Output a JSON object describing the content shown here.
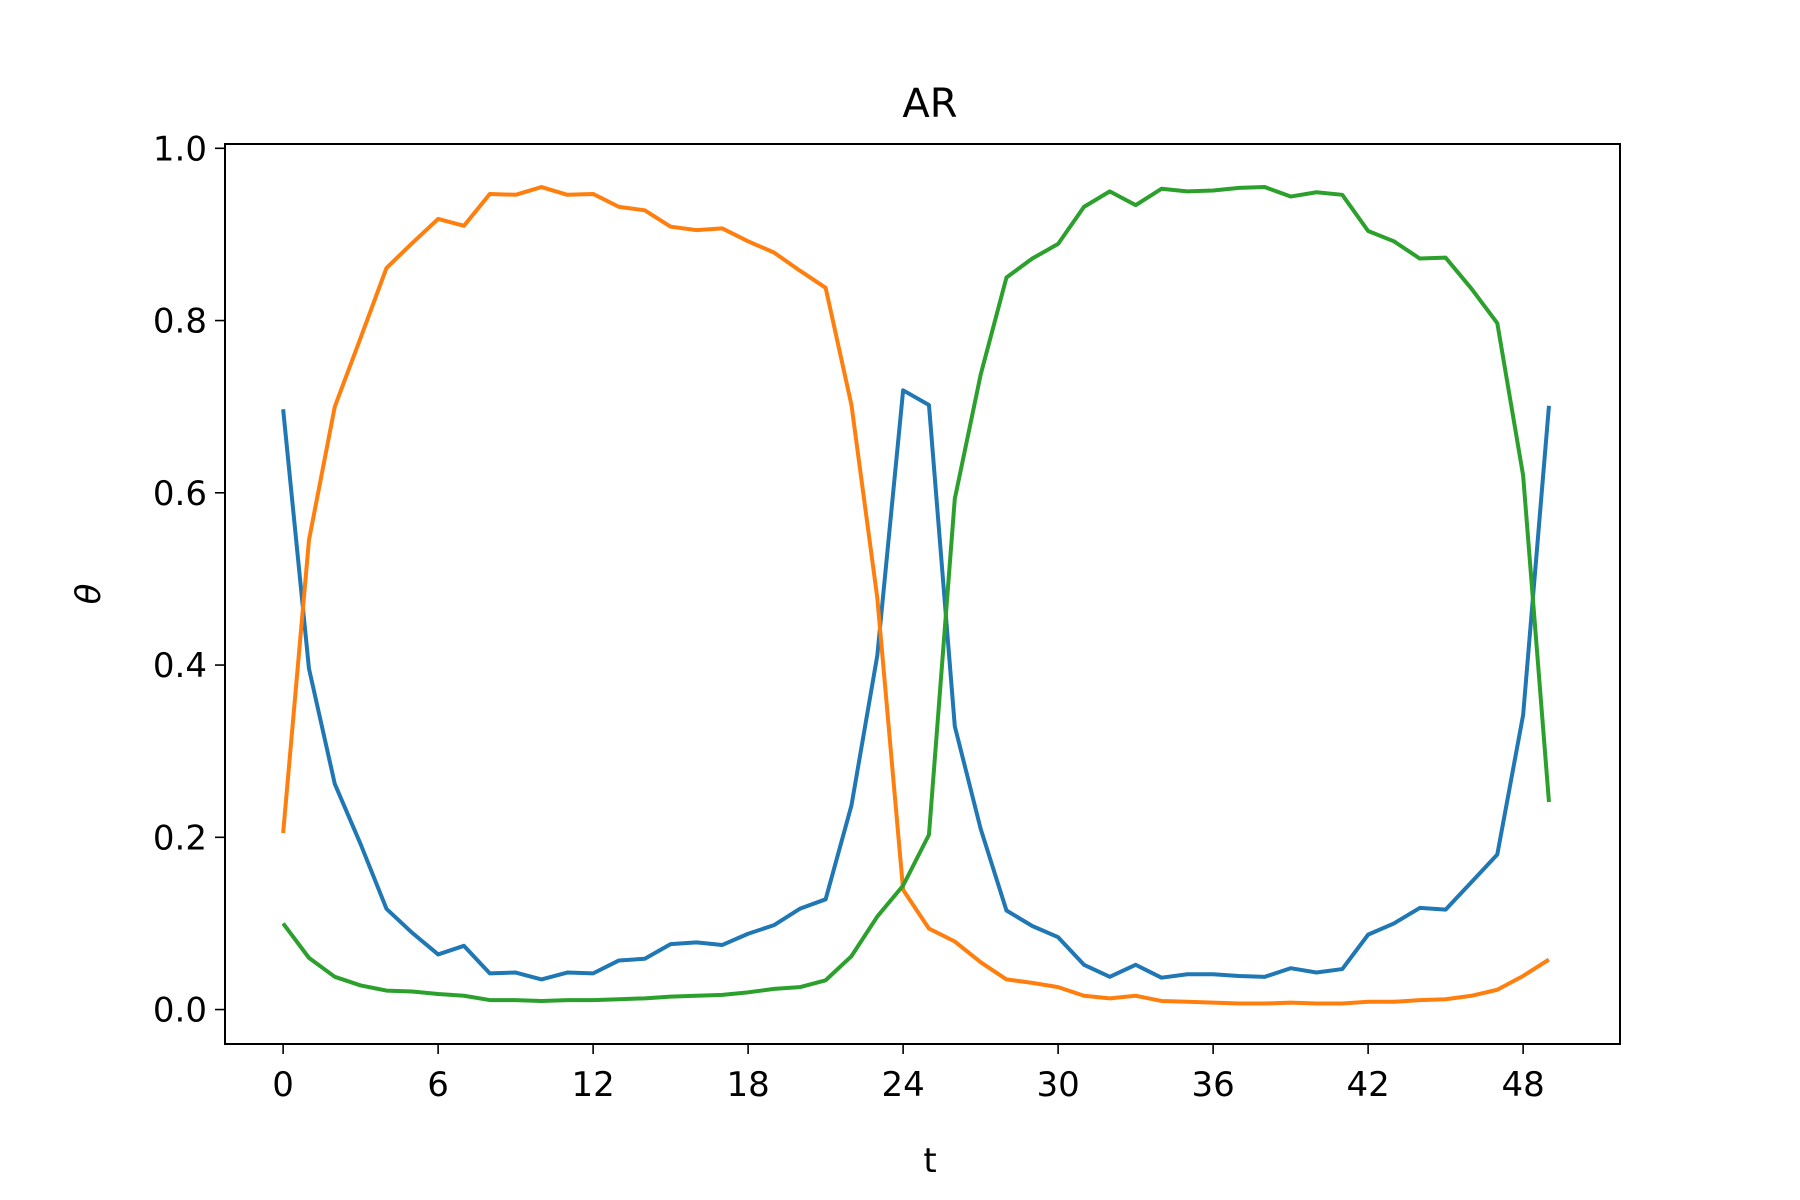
{
  "chart_data": {
    "type": "line",
    "title": "AR",
    "xlabel": "t",
    "ylabel": "θ",
    "xlim": [
      -2.25,
      51.75
    ],
    "ylim": [
      -0.04,
      1.005
    ],
    "xticks": [
      0,
      6,
      12,
      18,
      24,
      30,
      36,
      42,
      48
    ],
    "yticks": [
      0.0,
      0.2,
      0.4,
      0.6,
      0.8,
      1.0
    ],
    "xtick_labels": [
      "0",
      "6",
      "12",
      "18",
      "24",
      "30",
      "36",
      "42",
      "48"
    ],
    "ytick_labels": [
      "0.0",
      "0.2",
      "0.4",
      "0.6",
      "0.8",
      "1.0"
    ],
    "grid": false,
    "legend": "none",
    "x": [
      0,
      1,
      2,
      3,
      4,
      5,
      6,
      7,
      8,
      9,
      10,
      11,
      12,
      13,
      14,
      15,
      16,
      17,
      18,
      19,
      20,
      21,
      22,
      23,
      24,
      25,
      26,
      27,
      28,
      29,
      30,
      31,
      32,
      33,
      34,
      35,
      36,
      37,
      38,
      39,
      40,
      41,
      42,
      43,
      44,
      45,
      46,
      47,
      48,
      49
    ],
    "series": [
      {
        "color": "#1f77b4",
        "values": [
          0.697,
          0.396,
          0.262,
          0.192,
          0.117,
          0.089,
          0.064,
          0.074,
          0.042,
          0.043,
          0.035,
          0.043,
          0.042,
          0.057,
          0.059,
          0.076,
          0.078,
          0.075,
          0.088,
          0.098,
          0.117,
          0.128,
          0.237,
          0.411,
          0.719,
          0.702,
          0.329,
          0.21,
          0.115,
          0.097,
          0.084,
          0.052,
          0.038,
          0.052,
          0.037,
          0.041,
          0.041,
          0.039,
          0.038,
          0.048,
          0.043,
          0.047,
          0.087,
          0.1,
          0.118,
          0.116,
          0.148,
          0.18,
          0.342,
          0.701
        ]
      },
      {
        "color": "#ff7f0e",
        "values": [
          0.205,
          0.545,
          0.7,
          0.78,
          0.861,
          0.89,
          0.918,
          0.91,
          0.947,
          0.946,
          0.955,
          0.946,
          0.947,
          0.932,
          0.928,
          0.909,
          0.905,
          0.907,
          0.892,
          0.879,
          0.858,
          0.838,
          0.702,
          0.478,
          0.139,
          0.094,
          0.079,
          0.055,
          0.035,
          0.031,
          0.026,
          0.016,
          0.013,
          0.016,
          0.01,
          0.009,
          0.008,
          0.007,
          0.007,
          0.008,
          0.007,
          0.007,
          0.009,
          0.009,
          0.011,
          0.012,
          0.016,
          0.023,
          0.039,
          0.058
        ]
      },
      {
        "color": "#2ca02c",
        "values": [
          0.1,
          0.06,
          0.038,
          0.028,
          0.022,
          0.021,
          0.018,
          0.016,
          0.011,
          0.011,
          0.01,
          0.011,
          0.011,
          0.012,
          0.013,
          0.015,
          0.016,
          0.017,
          0.02,
          0.024,
          0.026,
          0.034,
          0.062,
          0.108,
          0.144,
          0.203,
          0.593,
          0.737,
          0.85,
          0.872,
          0.889,
          0.932,
          0.95,
          0.934,
          0.953,
          0.95,
          0.951,
          0.954,
          0.955,
          0.944,
          0.949,
          0.946,
          0.904,
          0.892,
          0.872,
          0.873,
          0.837,
          0.797,
          0.62,
          0.241
        ]
      }
    ]
  }
}
